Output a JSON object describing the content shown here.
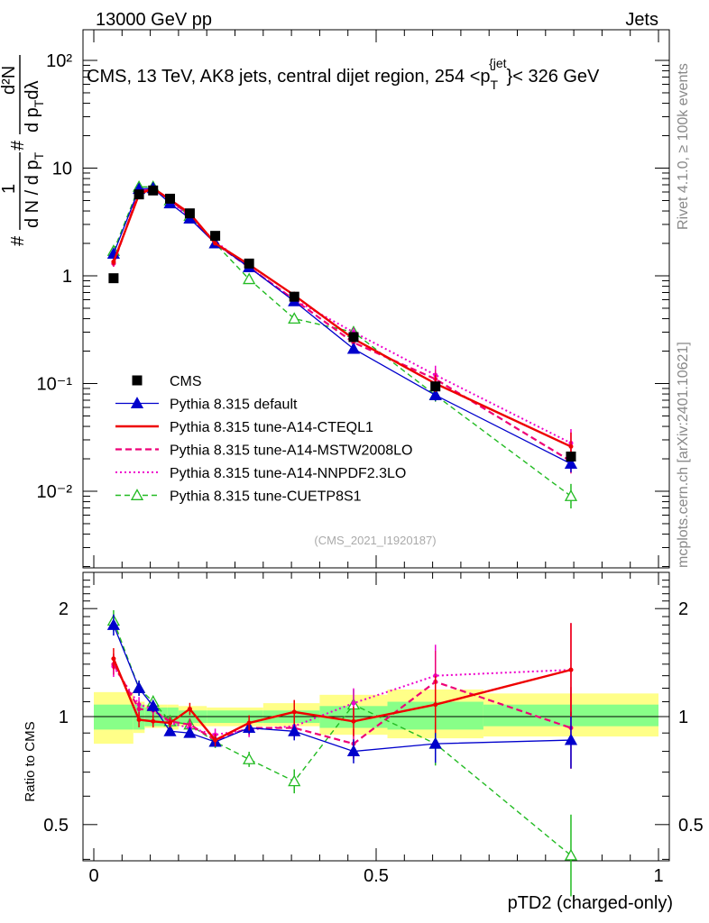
{
  "header": {
    "left": "13000 GeV pp",
    "right": "Jets",
    "title": "CMS, 13 TeV, AK8 jets, central dijet region, 254 <p",
    "title_sub": "T",
    "title_sup": "{jet",
    "title_end": "}< 326 GeV",
    "side_rivet": "Rivet 4.1.0, ≥ 100k events",
    "side_mcplots": "mcplots.cern.ch [arXiv:2401.10621]",
    "analysis_tag": "(CMS_2021_I1920187)"
  },
  "yaxis_top": {
    "label_hash": "#",
    "label_num": "1",
    "label_den": "d N / d p",
    "label_den_sub": "T",
    "label_hash2": "#",
    "label_num2": "d²N",
    "label_den2": "d p",
    "label_den2_sub": "T",
    "label_den2_end": "dλ",
    "ticks": [
      "10⁻²",
      "10⁻¹",
      "1",
      "10",
      "10²"
    ]
  },
  "yaxis_bottom": {
    "label": "Ratio to CMS",
    "ticks": [
      "0.5",
      "1",
      "2"
    ]
  },
  "xaxis": {
    "label": "pTD2 (charged-only)",
    "ticks": [
      "0",
      "0.5",
      "1"
    ]
  },
  "legend": [
    {
      "label": "CMS",
      "series": "cms"
    },
    {
      "label": "Pythia 8.315 default",
      "series": "default"
    },
    {
      "label": "Pythia 8.315 tune-A14-CTEQL1",
      "series": "cteql1"
    },
    {
      "label": "Pythia 8.315 tune-A14-MSTW2008LO",
      "series": "mstw"
    },
    {
      "label": "Pythia 8.315 tune-A14-NNPDF2.3LO",
      "series": "nnpdf"
    },
    {
      "label": "Pythia 8.315 tune-CUETP8S1",
      "series": "cuetp"
    }
  ],
  "colors": {
    "cms": "#000000",
    "default": "#0000cc",
    "cteql1": "#ee0000",
    "mstw": "#ee0077",
    "nnpdf": "#ee00cc",
    "cuetp": "#22bb22",
    "band_outer": "#ffff88",
    "band_inner": "#88ff88"
  },
  "chart_data": {
    "type": "line",
    "title": "CMS, 13 TeV, AK8 jets, central dijet region, 254 < pT jet < 326 GeV",
    "xlabel": "pTD2 (charged-only)",
    "ylabel": "1/N dN/dλ",
    "xlim": [
      0,
      1
    ],
    "ylim_top": [
      0.002,
      200
    ],
    "yscale_top": "log",
    "ylim_ratio": [
      0.4,
      2.4
    ],
    "yscale_ratio": "log",
    "bin_edges": [
      0,
      0.07,
      0.09,
      0.13,
      0.15,
      0.2,
      0.25,
      0.3,
      0.4,
      0.52,
      0.69,
      1.0
    ],
    "x": [
      0.035,
      0.08,
      0.105,
      0.135,
      0.17,
      0.215,
      0.275,
      0.355,
      0.46,
      0.605,
      0.845
    ],
    "data": {
      "name": "CMS",
      "values": [
        0.95,
        5.7,
        6.2,
        5.2,
        3.8,
        2.35,
        1.3,
        0.64,
        0.27,
        0.094,
        0.021
      ],
      "band_inner": [
        [
          0.92,
          1.08
        ],
        [
          0.92,
          1.08
        ],
        [
          0.94,
          1.06
        ],
        [
          0.94,
          1.06
        ],
        [
          0.96,
          1.04
        ],
        [
          0.96,
          1.04
        ],
        [
          0.96,
          1.04
        ],
        [
          0.96,
          1.04
        ],
        [
          0.93,
          1.07
        ],
        [
          0.92,
          1.1
        ],
        [
          0.94,
          1.08
        ]
      ],
      "band_outer": [
        [
          0.84,
          1.17
        ],
        [
          0.9,
          1.1
        ],
        [
          0.93,
          1.08
        ],
        [
          0.92,
          1.08
        ],
        [
          0.94,
          1.07
        ],
        [
          0.94,
          1.06
        ],
        [
          0.94,
          1.06
        ],
        [
          0.94,
          1.09
        ],
        [
          0.89,
          1.15
        ],
        [
          0.87,
          1.19
        ],
        [
          0.88,
          1.16
        ]
      ]
    },
    "series": [
      {
        "name": "Pythia 8.315 default",
        "key": "default",
        "values": [
          1.6,
          6.4,
          6.5,
          4.7,
          3.4,
          2.0,
          1.2,
          0.58,
          0.21,
          0.078,
          0.018
        ],
        "ratio": [
          1.8,
          1.2,
          1.07,
          0.91,
          0.9,
          0.85,
          0.93,
          0.91,
          0.8,
          0.84,
          0.86
        ],
        "err": [
          0.07,
          0.05,
          0.04,
          0.03,
          0.03,
          0.03,
          0.04,
          0.06,
          0.08,
          0.13,
          0.2
        ]
      },
      {
        "name": "Pythia 8.315 tune-A14-CTEQL1",
        "key": "cteql1",
        "values": [
          1.35,
          5.7,
          6.5,
          5.1,
          3.8,
          2.0,
          1.27,
          0.66,
          0.26,
          0.1,
          0.026
        ],
        "ratio": [
          1.45,
          0.98,
          0.97,
          0.96,
          1.05,
          0.86,
          0.96,
          1.03,
          0.97,
          1.08,
          1.35
        ],
        "err": [
          0.07,
          0.05,
          0.04,
          0.03,
          0.04,
          0.04,
          0.05,
          0.08,
          0.1,
          0.2,
          0.35
        ]
      },
      {
        "name": "Pythia 8.315 tune-A14-MSTW2008LO",
        "key": "mstw",
        "values": [
          1.3,
          6.0,
          6.5,
          5.1,
          3.6,
          2.0,
          1.2,
          0.6,
          0.24,
          0.11,
          0.019
        ],
        "ratio": [
          1.4,
          1.05,
          1.04,
          0.97,
          0.95,
          0.86,
          0.93,
          0.93,
          0.84,
          1.25,
          0.93
        ],
        "err": [
          0.07,
          0.05,
          0.04,
          0.03,
          0.04,
          0.04,
          0.05,
          0.07,
          0.1,
          0.22,
          0.3
        ]
      },
      {
        "name": "Pythia 8.315 tune-A14-NNPDF2.3LO",
        "key": "nnpdf",
        "values": [
          1.3,
          6.1,
          6.5,
          5.0,
          3.5,
          2.1,
          1.2,
          0.6,
          0.3,
          0.12,
          0.028
        ],
        "ratio": [
          1.38,
          1.08,
          1.05,
          0.96,
          0.93,
          0.89,
          0.92,
          0.94,
          1.09,
          1.3,
          1.35
        ],
        "err": [
          0.07,
          0.05,
          0.04,
          0.03,
          0.04,
          0.04,
          0.05,
          0.08,
          0.1,
          0.22,
          0.35
        ]
      },
      {
        "name": "Pythia 8.315 tune-CUETP8S1",
        "key": "cuetp",
        "values": [
          1.7,
          6.7,
          6.7,
          5.0,
          3.6,
          2.0,
          0.93,
          0.4,
          0.3,
          0.078,
          0.009
        ],
        "ratio": [
          1.85,
          1.2,
          1.1,
          0.97,
          0.95,
          0.85,
          0.76,
          0.66,
          1.08,
          0.84,
          0.41
        ],
        "err": [
          0.07,
          0.05,
          0.04,
          0.04,
          0.04,
          0.04,
          0.05,
          0.08,
          0.1,
          0.15,
          0.3
        ]
      }
    ]
  }
}
